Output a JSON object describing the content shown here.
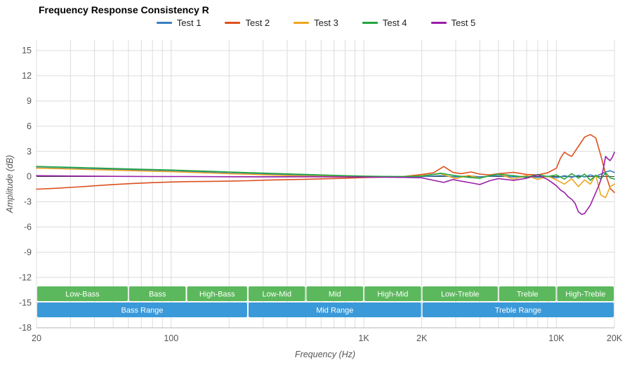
{
  "chart_data": {
    "type": "line",
    "title": "Frequency Response Consistency R",
    "xlabel": "Frequency (Hz)",
    "ylabel": "Amplitude (dB)",
    "x_scale": "log",
    "xlim": [
      20,
      20000
    ],
    "ylim": [
      -18,
      15
    ],
    "grid": true,
    "legend_position": "top",
    "y_ticks": [
      15,
      12,
      9,
      6,
      3,
      0,
      -3,
      -6,
      -9,
      -12,
      -15,
      -18
    ],
    "x_ticks": [
      {
        "v": 20,
        "label": "20"
      },
      {
        "v": 100,
        "label": "100"
      },
      {
        "v": 1000,
        "label": "1K"
      },
      {
        "v": 2000,
        "label": "2K"
      },
      {
        "v": 10000,
        "label": "10K"
      },
      {
        "v": 20000,
        "label": "20K"
      }
    ],
    "series": [
      {
        "name": "Test 1",
        "color": "#3a7ebf",
        "points": [
          [
            20,
            1.05
          ],
          [
            25,
            1.0
          ],
          [
            32,
            0.95
          ],
          [
            40,
            0.9
          ],
          [
            50,
            0.85
          ],
          [
            63,
            0.8
          ],
          [
            80,
            0.72
          ],
          [
            100,
            0.65
          ],
          [
            125,
            0.58
          ],
          [
            160,
            0.5
          ],
          [
            200,
            0.42
          ],
          [
            250,
            0.35
          ],
          [
            315,
            0.27
          ],
          [
            400,
            0.2
          ],
          [
            500,
            0.13
          ],
          [
            630,
            0.08
          ],
          [
            800,
            0.04
          ],
          [
            1000,
            0.02
          ],
          [
            1250,
            0.0
          ],
          [
            1600,
            -0.02
          ],
          [
            2000,
            0.0
          ],
          [
            2500,
            0.1
          ],
          [
            3000,
            -0.05
          ],
          [
            3500,
            0.08
          ],
          [
            4000,
            -0.03
          ],
          [
            5000,
            0.1
          ],
          [
            6000,
            -0.05
          ],
          [
            7000,
            0.05
          ],
          [
            8000,
            -0.1
          ],
          [
            9000,
            0.0
          ],
          [
            10000,
            -0.15
          ],
          [
            11000,
            0.1
          ],
          [
            12000,
            -0.1
          ],
          [
            13000,
            0.15
          ],
          [
            14000,
            -0.05
          ],
          [
            15000,
            0.2
          ],
          [
            16000,
            0.0
          ],
          [
            17000,
            0.3
          ],
          [
            18000,
            0.55
          ],
          [
            19000,
            0.7
          ],
          [
            20000,
            0.5
          ]
        ]
      },
      {
        "name": "Test 2",
        "color": "#dc501e",
        "points": [
          [
            20,
            -1.5
          ],
          [
            25,
            -1.4
          ],
          [
            32,
            -1.25
          ],
          [
            40,
            -1.1
          ],
          [
            50,
            -0.95
          ],
          [
            63,
            -0.82
          ],
          [
            80,
            -0.72
          ],
          [
            100,
            -0.65
          ],
          [
            125,
            -0.6
          ],
          [
            160,
            -0.57
          ],
          [
            200,
            -0.55
          ],
          [
            250,
            -0.5
          ],
          [
            315,
            -0.42
          ],
          [
            400,
            -0.36
          ],
          [
            500,
            -0.32
          ],
          [
            630,
            -0.26
          ],
          [
            800,
            -0.2
          ],
          [
            1000,
            -0.12
          ],
          [
            1250,
            -0.06
          ],
          [
            1600,
            0.0
          ],
          [
            2000,
            0.25
          ],
          [
            2300,
            0.45
          ],
          [
            2600,
            1.2
          ],
          [
            2900,
            0.5
          ],
          [
            3200,
            0.35
          ],
          [
            3600,
            0.55
          ],
          [
            4000,
            0.3
          ],
          [
            4500,
            0.2
          ],
          [
            5000,
            0.35
          ],
          [
            6000,
            0.5
          ],
          [
            7000,
            0.25
          ],
          [
            8000,
            0.2
          ],
          [
            9000,
            0.45
          ],
          [
            10000,
            1.0
          ],
          [
            10500,
            2.2
          ],
          [
            11000,
            2.9
          ],
          [
            11500,
            2.6
          ],
          [
            12000,
            2.4
          ],
          [
            12500,
            3.0
          ],
          [
            13000,
            3.6
          ],
          [
            14000,
            4.7
          ],
          [
            15000,
            5.0
          ],
          [
            16000,
            4.6
          ],
          [
            17000,
            2.5
          ],
          [
            18000,
            0.3
          ],
          [
            19000,
            -1.4
          ],
          [
            20000,
            -1.9
          ]
        ]
      },
      {
        "name": "Test 3",
        "color": "#eda620",
        "points": [
          [
            20,
            1.0
          ],
          [
            25,
            0.95
          ],
          [
            32,
            0.88
          ],
          [
            40,
            0.82
          ],
          [
            50,
            0.76
          ],
          [
            63,
            0.7
          ],
          [
            80,
            0.64
          ],
          [
            100,
            0.58
          ],
          [
            125,
            0.5
          ],
          [
            160,
            0.42
          ],
          [
            200,
            0.35
          ],
          [
            250,
            0.28
          ],
          [
            315,
            0.2
          ],
          [
            400,
            0.12
          ],
          [
            500,
            0.06
          ],
          [
            630,
            0.02
          ],
          [
            800,
            -0.02
          ],
          [
            1000,
            -0.05
          ],
          [
            1250,
            -0.05
          ],
          [
            1600,
            0.0
          ],
          [
            2000,
            0.1
          ],
          [
            2500,
            0.35
          ],
          [
            3000,
            -0.25
          ],
          [
            3500,
            0.15
          ],
          [
            4000,
            -0.2
          ],
          [
            4500,
            0.1
          ],
          [
            5000,
            0.3
          ],
          [
            6000,
            -0.3
          ],
          [
            7000,
            0.15
          ],
          [
            8000,
            -0.35
          ],
          [
            9000,
            0.05
          ],
          [
            10000,
            -0.4
          ],
          [
            11000,
            -0.9
          ],
          [
            12000,
            -0.25
          ],
          [
            13000,
            -1.2
          ],
          [
            14000,
            -0.4
          ],
          [
            15000,
            -0.9
          ],
          [
            16000,
            0.2
          ],
          [
            17000,
            -2.2
          ],
          [
            18000,
            -2.5
          ],
          [
            19000,
            -1.2
          ],
          [
            20000,
            -0.9
          ]
        ]
      },
      {
        "name": "Test 4",
        "color": "#22a53f",
        "points": [
          [
            20,
            1.2
          ],
          [
            25,
            1.15
          ],
          [
            32,
            1.08
          ],
          [
            40,
            1.02
          ],
          [
            50,
            0.96
          ],
          [
            63,
            0.9
          ],
          [
            80,
            0.84
          ],
          [
            100,
            0.78
          ],
          [
            125,
            0.7
          ],
          [
            160,
            0.62
          ],
          [
            200,
            0.55
          ],
          [
            250,
            0.47
          ],
          [
            315,
            0.4
          ],
          [
            400,
            0.32
          ],
          [
            500,
            0.25
          ],
          [
            630,
            0.18
          ],
          [
            800,
            0.1
          ],
          [
            1000,
            0.05
          ],
          [
            1250,
            0.02
          ],
          [
            1600,
            0.0
          ],
          [
            2000,
            0.05
          ],
          [
            2500,
            0.4
          ],
          [
            3000,
            0.1
          ],
          [
            3500,
            -0.1
          ],
          [
            4000,
            -0.2
          ],
          [
            4500,
            0.1
          ],
          [
            5000,
            0.3
          ],
          [
            6000,
            0.1
          ],
          [
            7000,
            -0.1
          ],
          [
            8000,
            0.25
          ],
          [
            9000,
            0.0
          ],
          [
            10000,
            0.2
          ],
          [
            11000,
            -0.3
          ],
          [
            12000,
            0.35
          ],
          [
            13000,
            -0.2
          ],
          [
            14000,
            0.3
          ],
          [
            15000,
            -0.45
          ],
          [
            16000,
            0.15
          ],
          [
            17000,
            -0.3
          ],
          [
            18000,
            0.45
          ],
          [
            19000,
            -0.15
          ],
          [
            20000,
            -0.3
          ]
        ]
      },
      {
        "name": "Test 5",
        "color": "#9a1fa8",
        "points": [
          [
            20,
            0.1
          ],
          [
            32,
            0.06
          ],
          [
            50,
            0.03
          ],
          [
            80,
            0.0
          ],
          [
            125,
            0.0
          ],
          [
            200,
            -0.02
          ],
          [
            315,
            -0.03
          ],
          [
            500,
            -0.02
          ],
          [
            800,
            -0.05
          ],
          [
            1000,
            -0.06
          ],
          [
            1250,
            -0.08
          ],
          [
            1600,
            -0.1
          ],
          [
            2000,
            -0.15
          ],
          [
            2300,
            -0.45
          ],
          [
            2600,
            -0.7
          ],
          [
            2900,
            -0.35
          ],
          [
            3200,
            -0.55
          ],
          [
            3600,
            -0.75
          ],
          [
            4000,
            -0.95
          ],
          [
            4500,
            -0.5
          ],
          [
            5000,
            -0.25
          ],
          [
            6000,
            -0.45
          ],
          [
            7000,
            -0.2
          ],
          [
            8000,
            0.2
          ],
          [
            9000,
            -0.35
          ],
          [
            10000,
            -1.1
          ],
          [
            10500,
            -1.6
          ],
          [
            11000,
            -1.9
          ],
          [
            11500,
            -2.4
          ],
          [
            12000,
            -2.7
          ],
          [
            12500,
            -3.2
          ],
          [
            13000,
            -4.2
          ],
          [
            13500,
            -4.5
          ],
          [
            14000,
            -4.4
          ],
          [
            15000,
            -3.4
          ],
          [
            16000,
            -1.9
          ],
          [
            16500,
            -1.2
          ],
          [
            17000,
            -0.4
          ],
          [
            17500,
            0.9
          ],
          [
            18000,
            2.4
          ],
          [
            18500,
            2.1
          ],
          [
            19000,
            1.9
          ],
          [
            19500,
            2.3
          ],
          [
            20000,
            2.9
          ]
        ]
      }
    ],
    "bands": {
      "sub_color": "#5cb85c",
      "main_color": "#3a99d8",
      "sub": [
        {
          "label": "Low-Bass",
          "from": 20,
          "to": 60
        },
        {
          "label": "Bass",
          "from": 60,
          "to": 120
        },
        {
          "label": "High-Bass",
          "from": 120,
          "to": 250
        },
        {
          "label": "Low-Mid",
          "from": 250,
          "to": 500
        },
        {
          "label": "Mid",
          "from": 500,
          "to": 1000
        },
        {
          "label": "High-Mid",
          "from": 1000,
          "to": 2000
        },
        {
          "label": "Low-Treble",
          "from": 2000,
          "to": 5000
        },
        {
          "label": "Treble",
          "from": 5000,
          "to": 10000
        },
        {
          "label": "High-Treble",
          "from": 10000,
          "to": 20000
        }
      ],
      "main": [
        {
          "label": "Bass Range",
          "from": 20,
          "to": 250
        },
        {
          "label": "Mid Range",
          "from": 250,
          "to": 2000
        },
        {
          "label": "Treble Range",
          "from": 2000,
          "to": 20000
        }
      ]
    }
  }
}
